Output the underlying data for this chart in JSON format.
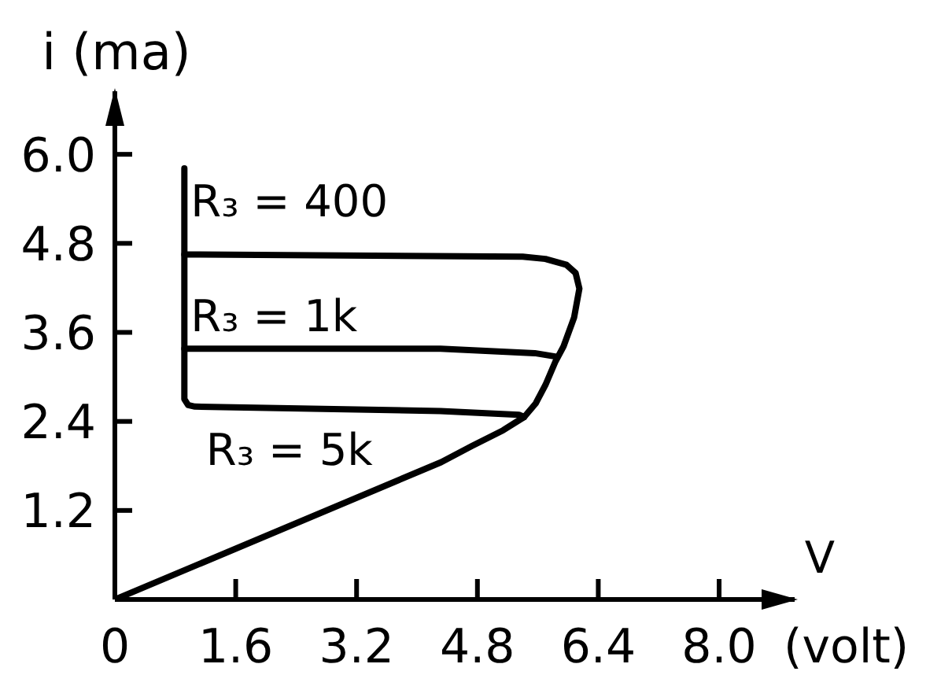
{
  "chart_data": {
    "type": "line",
    "ylabel": "i (ma)",
    "xlabel": "V",
    "annotations": [
      "(volt)"
    ],
    "xlim": [
      0,
      9
    ],
    "ylim": [
      0,
      6.85
    ],
    "xticks": [
      0,
      1.6,
      3.2,
      4.8,
      6.4,
      {
        "value": 8,
        "label": "8.0"
      }
    ],
    "yticks": [
      1.2,
      2.4,
      3.6,
      4.8,
      {
        "value": 6,
        "label": "6.0"
      }
    ],
    "series": [
      {
        "name": "R₃ = 400",
        "color": "#000000",
        "x": [
          0.92,
          0.92,
          5.4,
          5.7,
          5.98,
          6.1,
          6.15,
          6.08,
          5.94,
          5.83,
          5.7,
          5.57,
          5.42,
          5.14,
          4.73,
          4.32,
          0
        ],
        "values": [
          5.81,
          4.65,
          4.62,
          4.59,
          4.51,
          4.4,
          4.19,
          3.8,
          3.41,
          3.2,
          2.89,
          2.64,
          2.46,
          2.28,
          2.07,
          1.85,
          0
        ]
      },
      {
        "name": "R₃ = 1k",
        "color": "#000000",
        "x": [
          0.92,
          0.92,
          4.31,
          5.56,
          5.86
        ],
        "values": [
          4.65,
          3.38,
          3.38,
          3.32,
          3.27
        ]
      },
      {
        "name": "R₃ = 5k",
        "color": "#000000",
        "x": [
          0.92,
          0.92,
          0.97,
          1.06,
          4.31,
          5.35,
          5.42
        ],
        "values": [
          3.38,
          2.7,
          2.62,
          2.6,
          2.54,
          2.49,
          2.46
        ]
      }
    ]
  }
}
